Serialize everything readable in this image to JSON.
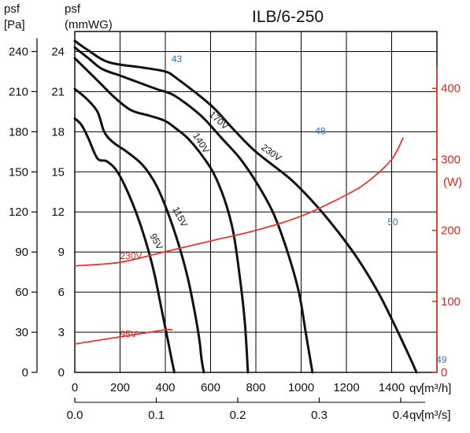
{
  "chart_data": {
    "type": "line",
    "title": "ILB/6-250",
    "axes": {
      "left_outer": {
        "label": "psf",
        "unit": "[Pa]",
        "range": [
          0,
          255
        ],
        "ticks": [
          "0",
          "30",
          "60",
          "90",
          "120",
          "150",
          "180",
          "210",
          "240"
        ]
      },
      "left_inner": {
        "label": "psf",
        "unit": "(mmWG)",
        "ticks": [
          "0",
          "3",
          "6",
          "9",
          "12",
          "15",
          "18",
          "21",
          "24"
        ]
      },
      "right": {
        "unit": "(W)",
        "range": [
          0,
          480
        ],
        "ticks": [
          "0",
          "100",
          "200",
          "300",
          "400"
        ]
      },
      "bottom_1": {
        "label": "qv",
        "unit": "[m³/h]",
        "range": [
          0,
          1600
        ],
        "ticks": [
          "0",
          "200",
          "400",
          "600",
          "800",
          "1000",
          "1200",
          "1400"
        ]
      },
      "bottom_2": {
        "label": "qv",
        "unit": "[m³/s]",
        "ticks": [
          "0.0",
          "0.1",
          "0.2",
          "0.3",
          "0.4"
        ]
      },
      "grid": true
    },
    "series": [
      {
        "name": "230V",
        "x": [
          0,
          50,
          150,
          300,
          400,
          450,
          600,
          700,
          800,
          950,
          1050,
          1150,
          1250,
          1340,
          1400,
          1470,
          1510
        ],
        "y": [
          248,
          242,
          232,
          228,
          225,
          220,
          200,
          182,
          165,
          145,
          128,
          108,
          85,
          60,
          40,
          15,
          0
        ]
      },
      {
        "name": "170V",
        "x": [
          0,
          60,
          120,
          200,
          280,
          360,
          430,
          500,
          570,
          650,
          730,
          810,
          880,
          940,
          990,
          1020,
          1040,
          1050
        ],
        "y": [
          243,
          235,
          227,
          222,
          217,
          212,
          208,
          200,
          190,
          175,
          160,
          140,
          118,
          90,
          60,
          30,
          10,
          0
        ]
      },
      {
        "name": "140V",
        "x": [
          0,
          60,
          120,
          180,
          250,
          330,
          400,
          450,
          500,
          550,
          610,
          660,
          700,
          730,
          750,
          760,
          765
        ],
        "y": [
          235,
          225,
          215,
          205,
          196,
          192,
          188,
          182,
          175,
          165,
          150,
          130,
          105,
          70,
          40,
          15,
          0
        ]
      },
      {
        "name": "115V",
        "x": [
          0,
          50,
          100,
          130,
          170,
          230,
          300,
          360,
          410,
          460,
          500,
          530,
          550,
          560,
          570
        ],
        "y": [
          212,
          205,
          195,
          180,
          172,
          165,
          155,
          140,
          120,
          95,
          70,
          45,
          25,
          10,
          0
        ]
      },
      {
        "name": "95V",
        "x": [
          0,
          30,
          60,
          100,
          140,
          180,
          220,
          270,
          310,
          350,
          380,
          410,
          430,
          440
        ],
        "y": [
          190,
          185,
          175,
          160,
          158,
          152,
          140,
          120,
          100,
          75,
          50,
          25,
          8,
          0
        ]
      }
    ],
    "power_series": [
      {
        "name": "230V",
        "unit": "W",
        "x": [
          0,
          200,
          400,
          600,
          800,
          1000,
          1200,
          1300,
          1400,
          1450
        ],
        "y": [
          150,
          155,
          170,
          185,
          200,
          220,
          250,
          270,
          300,
          330
        ]
      },
      {
        "name": "95V",
        "unit": "W",
        "x": [
          0,
          100,
          200,
          300,
          400,
          430
        ],
        "y": [
          40,
          45,
          50,
          55,
          60,
          60
        ]
      }
    ],
    "annotations": [
      "43",
      "48",
      "50",
      "49"
    ]
  }
}
